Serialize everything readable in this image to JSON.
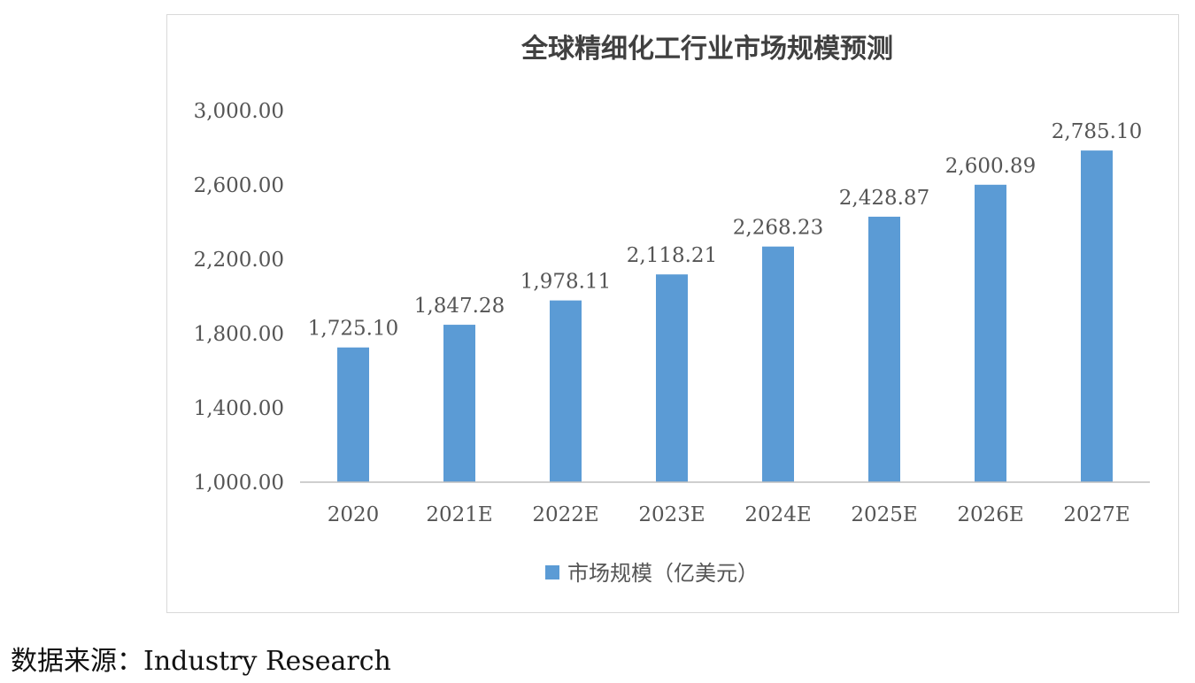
{
  "chart_data": {
    "type": "bar",
    "title": "全球精细化工行业市场规模预测",
    "categories": [
      "2020",
      "2021E",
      "2022E",
      "2023E",
      "2024E",
      "2025E",
      "2026E",
      "2027E"
    ],
    "series": [
      {
        "name": "市场规模（亿美元）",
        "values": [
          1725.1,
          1847.28,
          1978.11,
          2118.21,
          2268.23,
          2428.87,
          2600.89,
          2785.1
        ]
      }
    ],
    "data_labels": [
      "1,725.10",
      "1,847.28",
      "1,978.11",
      "2,118.21",
      "2,268.23",
      "2,428.87",
      "2,600.89",
      "2,785.10"
    ],
    "y_ticks": [
      1000,
      1400,
      1800,
      2200,
      2600,
      3000
    ],
    "y_tick_labels": [
      "1,000.00",
      "1,400.00",
      "1,800.00",
      "2,200.00",
      "2,600.00",
      "3,000.00"
    ],
    "ylim": [
      1000,
      3000
    ],
    "xlabel": "",
    "ylabel": "",
    "grid": false,
    "legend_position": "bottom",
    "bar_color": "#5b9bd5"
  },
  "source": {
    "label": "数据来源：",
    "text": "Industry Research"
  }
}
